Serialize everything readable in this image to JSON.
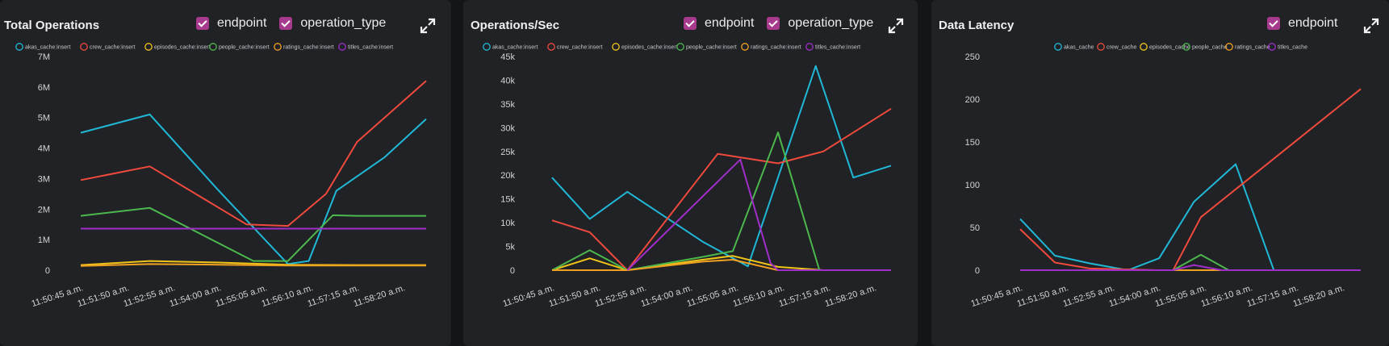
{
  "panels": [
    {
      "title": "Total Operations",
      "filters": [
        "endpoint",
        "operation_type"
      ],
      "expand_icon": "expand-icon"
    },
    {
      "title": "Operations/Sec",
      "filters": [
        "endpoint",
        "operation_type"
      ],
      "expand_icon": "expand-icon"
    },
    {
      "title": "Data Latency",
      "filters": [
        "endpoint"
      ],
      "expand_icon": "expand-icon"
    }
  ],
  "colors": {
    "akas": "#20b8d6",
    "crew": "#ef4a3c",
    "episodes": "#f0c419",
    "people": "#4cb84c",
    "ratings": "#f0a020",
    "titles": "#a02ec8"
  },
  "chart_data": [
    {
      "type": "line",
      "x": [
        "11:50:45 a.m.",
        "11:51:50 a.m.",
        "11:52:55 a.m.",
        "11:54:00 a.m.",
        "11:55:05 a.m.",
        "11:56:10 a.m.",
        "11:57:15 a.m.",
        "11:58:20 a.m."
      ],
      "ytick_labels": [
        "0",
        "1M",
        "2M",
        "3M",
        "4M",
        "5M",
        "6M",
        "7M"
      ],
      "ylim": [
        0,
        7000000
      ],
      "series": [
        {
          "name": "akas_cache:insert",
          "key": "akas",
          "points": [
            [
              0,
              4500000
            ],
            [
              1,
              5100000
            ],
            [
              2,
              2600000
            ],
            [
              3,
              200000
            ],
            [
              3.3,
              300000
            ],
            [
              3.7,
              2600000
            ],
            [
              4.4,
              3700000
            ],
            [
              5,
              4950000
            ]
          ]
        },
        {
          "name": "crew_cache:insert",
          "key": "crew",
          "points": [
            [
              0,
              2950000
            ],
            [
              1,
              3400000
            ],
            [
              2.4,
              1500000
            ],
            [
              3,
              1450000
            ],
            [
              3.55,
              2500000
            ],
            [
              4,
              4200000
            ],
            [
              5,
              6200000
            ]
          ]
        },
        {
          "name": "episodes_cache:insert",
          "key": "episodes",
          "points": [
            [
              0,
              170000
            ],
            [
              1,
              300000
            ],
            [
              2,
              250000
            ],
            [
              3,
              180000
            ],
            [
              4,
              170000
            ],
            [
              5,
              170000
            ]
          ]
        },
        {
          "name": "people_cache:insert",
          "key": "people",
          "points": [
            [
              0,
              1780000
            ],
            [
              1,
              2040000
            ],
            [
              2.5,
              300000
            ],
            [
              3,
              300000
            ],
            [
              3.65,
              1800000
            ],
            [
              4,
              1780000
            ],
            [
              5,
              1780000
            ]
          ]
        },
        {
          "name": "ratings_cache:insert",
          "key": "ratings",
          "points": [
            [
              0,
              140000
            ],
            [
              1,
              200000
            ],
            [
              2,
              180000
            ],
            [
              3,
              150000
            ],
            [
              4,
              150000
            ],
            [
              5,
              150000
            ]
          ]
        },
        {
          "name": "titles_cache:insert",
          "key": "titles",
          "points": [
            [
              0,
              1360000
            ],
            [
              5,
              1360000
            ]
          ]
        }
      ]
    },
    {
      "type": "line",
      "x": [
        "11:50:45 a.m.",
        "11:51:50 a.m.",
        "11:52:55 a.m.",
        "11:54:00 a.m.",
        "11:55:05 a.m.",
        "11:56:10 a.m.",
        "11:57:15 a.m.",
        "11:58:20 a.m."
      ],
      "ytick_labels": [
        "0",
        "5k",
        "10k",
        "15k",
        "20k",
        "25k",
        "30k",
        "35k",
        "40k",
        "45k"
      ],
      "ylim": [
        0,
        45000
      ],
      "series": [
        {
          "name": "akas_cache:insert",
          "key": "akas",
          "points": [
            [
              0,
              19500
            ],
            [
              0.5,
              10800
            ],
            [
              1,
              16500
            ],
            [
              2,
              6000
            ],
            [
              2.6,
              800
            ],
            [
              3.5,
              43000
            ],
            [
              4,
              19500
            ],
            [
              4.5,
              22000
            ]
          ]
        },
        {
          "name": "crew_cache:insert",
          "key": "crew",
          "points": [
            [
              0,
              10500
            ],
            [
              0.5,
              8000
            ],
            [
              1,
              0
            ],
            [
              2.2,
              24500
            ],
            [
              3,
              22500
            ],
            [
              3.6,
              25000
            ],
            [
              4.5,
              34000
            ]
          ]
        },
        {
          "name": "episodes_cache:insert",
          "key": "episodes",
          "points": [
            [
              0,
              0
            ],
            [
              0.5,
              2500
            ],
            [
              1,
              0
            ],
            [
              2,
              2200
            ],
            [
              2.4,
              3000
            ],
            [
              3,
              700
            ],
            [
              3.6,
              0
            ],
            [
              4.5,
              0
            ]
          ]
        },
        {
          "name": "people_cache:insert",
          "key": "people",
          "points": [
            [
              0,
              0
            ],
            [
              0.5,
              4200
            ],
            [
              1,
              0
            ],
            [
              2,
              2800
            ],
            [
              2.4,
              4000
            ],
            [
              3,
              29000
            ],
            [
              3.55,
              0
            ],
            [
              4.5,
              0
            ]
          ]
        },
        {
          "name": "ratings_cache:insert",
          "key": "ratings",
          "points": [
            [
              0,
              0
            ],
            [
              1,
              0
            ],
            [
              2,
              1800
            ],
            [
              2.4,
              2200
            ],
            [
              3,
              0
            ],
            [
              4.5,
              0
            ]
          ]
        },
        {
          "name": "titles_cache:insert",
          "key": "titles",
          "points": [
            [
              1,
              0
            ],
            [
              2.5,
              23300
            ],
            [
              2.9,
              1500
            ],
            [
              3,
              0
            ],
            [
              4.5,
              0
            ]
          ]
        }
      ]
    },
    {
      "type": "line",
      "x": [
        "11:50:45 a.m.",
        "11:51:50 a.m.",
        "11:52:55 a.m.",
        "11:54:00 a.m.",
        "11:55:05 a.m.",
        "11:56:10 a.m.",
        "11:57:15 a.m.",
        "11:58:20 a.m."
      ],
      "ytick_labels": [
        "0",
        "50",
        "100",
        "150",
        "200",
        "250"
      ],
      "ylim": [
        0,
        250
      ],
      "series": [
        {
          "name": "akas_cache",
          "key": "akas",
          "points": [
            [
              0,
              60
            ],
            [
              0.5,
              17
            ],
            [
              1,
              8
            ],
            [
              1.55,
              0
            ],
            [
              2,
              14
            ],
            [
              2.5,
              80
            ],
            [
              3.1,
              124
            ],
            [
              3.65,
              0
            ],
            [
              4.9,
              0
            ]
          ]
        },
        {
          "name": "crew_cache",
          "key": "crew",
          "points": [
            [
              0,
              48
            ],
            [
              0.5,
              9
            ],
            [
              1,
              2
            ],
            [
              2,
              0
            ],
            [
              2.2,
              0
            ],
            [
              2.6,
              62
            ],
            [
              4.9,
              212
            ]
          ]
        },
        {
          "name": "episodes_cache",
          "key": "episodes",
          "points": [
            [
              0,
              0
            ],
            [
              4.9,
              0
            ]
          ]
        },
        {
          "name": "people_cache",
          "key": "people",
          "points": [
            [
              0,
              0
            ],
            [
              2.2,
              0
            ],
            [
              2.6,
              18
            ],
            [
              3,
              0
            ],
            [
              4.9,
              0
            ]
          ]
        },
        {
          "name": "ratings_cache",
          "key": "ratings",
          "points": [
            [
              0,
              0
            ],
            [
              4.9,
              0
            ]
          ]
        },
        {
          "name": "titles_cache",
          "key": "titles",
          "points": [
            [
              0,
              0
            ],
            [
              2.2,
              0
            ],
            [
              2.5,
              6
            ],
            [
              2.9,
              0
            ],
            [
              4.9,
              0
            ]
          ]
        }
      ]
    }
  ]
}
